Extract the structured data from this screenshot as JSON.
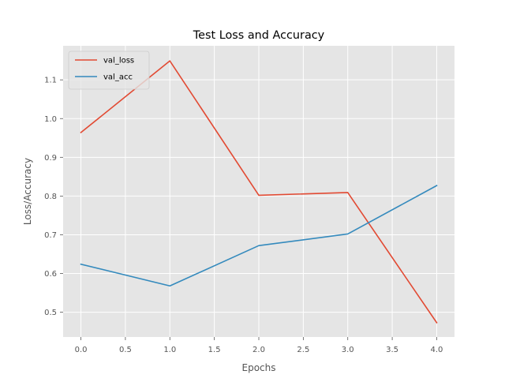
{
  "chart_data": {
    "type": "line",
    "title": "Test Loss and Accuracy",
    "xlabel": "Epochs",
    "ylabel": "Loss/Accuracy",
    "x": [
      0,
      1,
      2,
      3,
      4
    ],
    "xlim": [
      -0.2,
      4.2
    ],
    "ylim": [
      0.436,
      1.188
    ],
    "xticks": [
      0.0,
      0.5,
      1.0,
      1.5,
      2.0,
      2.5,
      3.0,
      3.5,
      4.0
    ],
    "xtick_labels": [
      "0.0",
      "0.5",
      "1.0",
      "1.5",
      "2.0",
      "2.5",
      "3.0",
      "3.5",
      "4.0"
    ],
    "yticks": [
      0.5,
      0.6,
      0.7,
      0.8,
      0.9,
      1.0,
      1.1
    ],
    "ytick_labels": [
      "0.5",
      "0.6",
      "0.7",
      "0.8",
      "0.9",
      "1.0",
      "1.1"
    ],
    "grid": true,
    "legend_position": "top-left",
    "style": "ggplot",
    "background_color": "#e5e5e5",
    "grid_color": "#ffffff",
    "series": [
      {
        "name": "val_loss",
        "color": "#e24a33",
        "values": [
          0.964,
          1.149,
          0.802,
          0.809,
          0.473
        ]
      },
      {
        "name": "val_acc",
        "color": "#348abd",
        "values": [
          0.624,
          0.568,
          0.672,
          0.702,
          0.827
        ]
      }
    ]
  }
}
